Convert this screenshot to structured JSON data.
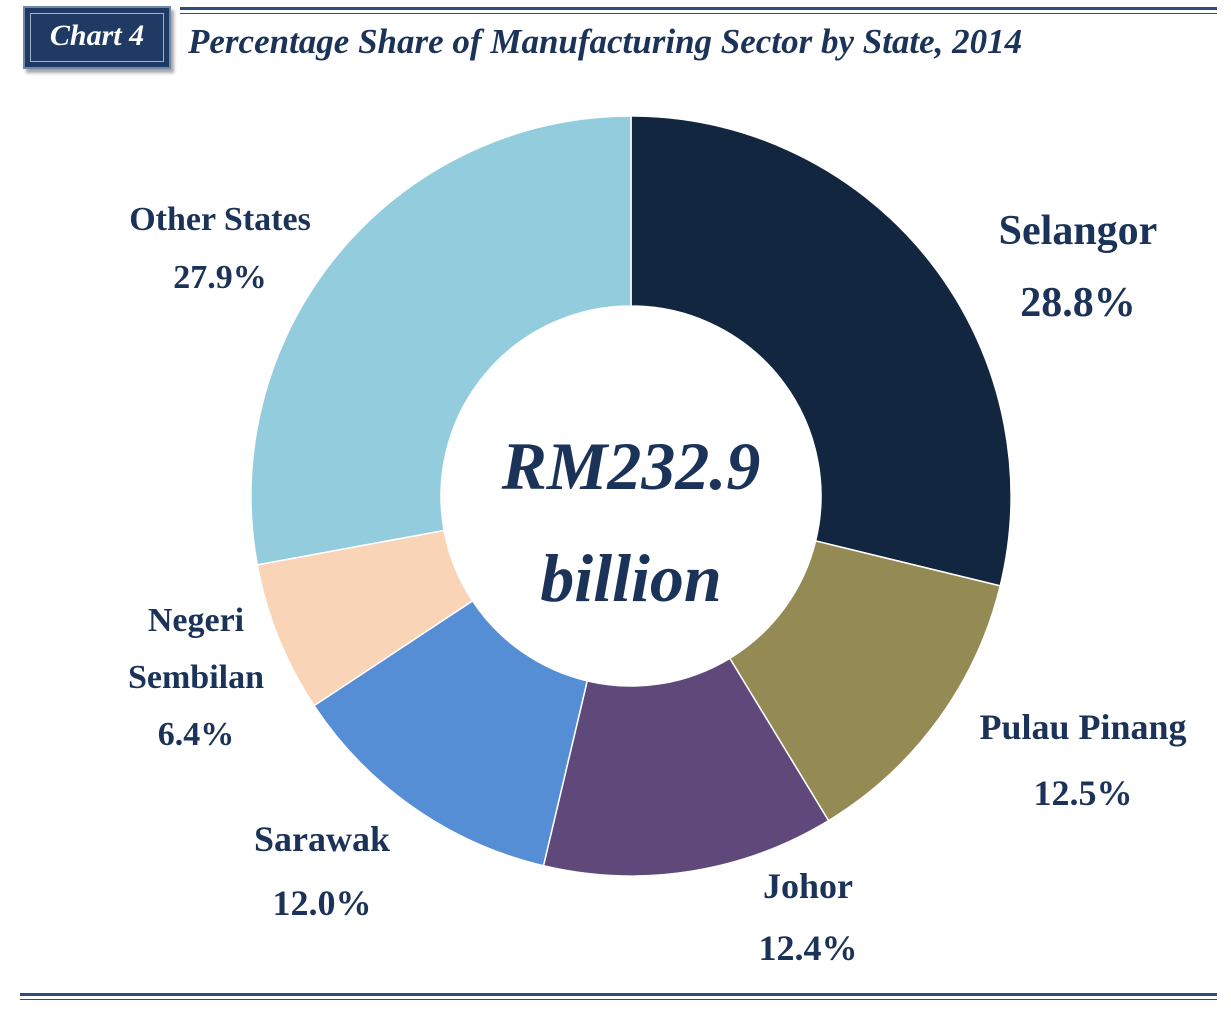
{
  "badge": {
    "label": "Chart 4"
  },
  "chart_data": {
    "type": "pie",
    "variant": "donut",
    "title": "Percentage Share of Manufacturing Sector by State, 2014",
    "center_label": {
      "line1": "RM232.9",
      "line2": "billion"
    },
    "categories": [
      "Selangor",
      "Pulau Pinang",
      "Johor",
      "Sarawak",
      "Negeri Sembilan",
      "Other States"
    ],
    "values": [
      28.8,
      12.5,
      12.4,
      12.0,
      6.4,
      27.9
    ],
    "labels": [
      {
        "lines": [
          "Selangor"
        ],
        "value": "28.8%"
      },
      {
        "lines": [
          "Pulau Pinang"
        ],
        "value": "12.5%"
      },
      {
        "lines": [
          "Johor"
        ],
        "value": "12.4%"
      },
      {
        "lines": [
          "Sarawak"
        ],
        "value": "12.0%"
      },
      {
        "lines": [
          "Negeri",
          "Sembilan"
        ],
        "value": "6.4%"
      },
      {
        "lines": [
          "Other States"
        ],
        "value": "27.9%"
      }
    ],
    "colors": [
      "#13263f",
      "#948a54",
      "#5f497a",
      "#558ed5",
      "#fad4b6",
      "#93cddd"
    ],
    "start_angle": "12 o'clock",
    "direction": "clockwise",
    "legend": "none"
  }
}
